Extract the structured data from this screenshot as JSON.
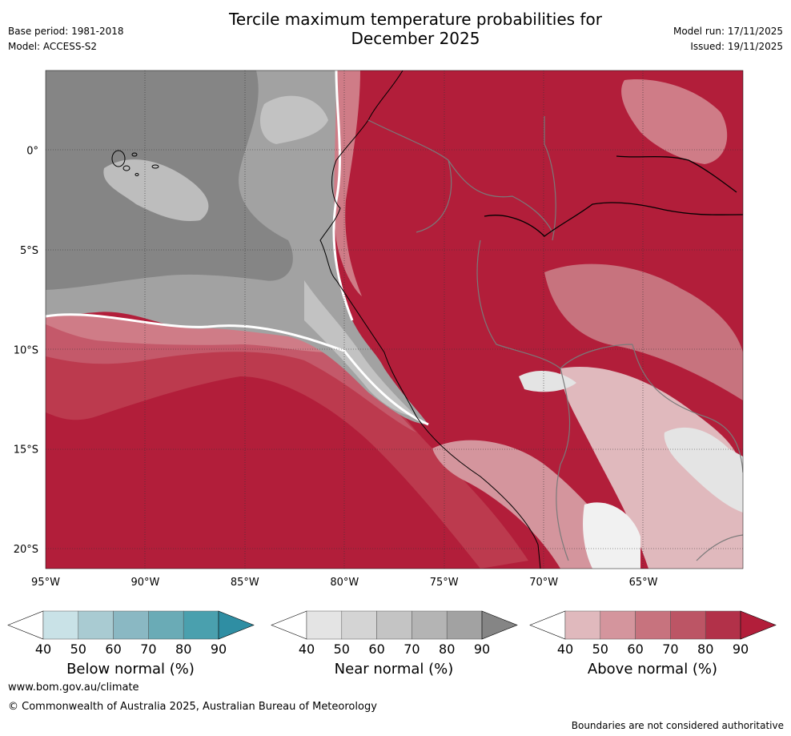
{
  "header": {
    "title_line1": "Tercile maximum temperature probabilities for",
    "title_line2": "December 2025",
    "base_period": "Base period: 1981-2018",
    "model": "Model: ACCESS-S2",
    "model_run": "Model run: 17/11/2025",
    "issued": "Issued: 19/11/2025"
  },
  "chart_data": {
    "type": "heatmap",
    "title": "Tercile maximum temperature probabilities for December 2025",
    "x_axis": {
      "range": [
        -95,
        -60
      ],
      "ticks": [
        -95,
        -90,
        -85,
        -80,
        -75,
        -70,
        -65
      ],
      "tick_labels": [
        "95°W",
        "90°W",
        "85°W",
        "80°W",
        "75°W",
        "70°W",
        "65°W"
      ]
    },
    "y_axis": {
      "range": [
        -21,
        4
      ],
      "ticks": [
        0,
        -5,
        -10,
        -15,
        -20
      ],
      "tick_labels": [
        "0°",
        "5°S",
        "10°S",
        "15°S",
        "20°S"
      ]
    },
    "grid": true,
    "categories": [
      {
        "name": "Below normal (%)",
        "levels": [
          40,
          50,
          60,
          70,
          80,
          90
        ],
        "colors": [
          "#ffffff",
          "#c9e2e7",
          "#a9cbd2",
          "#8ab8c3",
          "#6aabb6",
          "#4aa0ae",
          "#2f8ea3"
        ]
      },
      {
        "name": "Near normal (%)",
        "levels": [
          40,
          50,
          60,
          70,
          80,
          90
        ],
        "colors": [
          "#ffffff",
          "#e4e4e4",
          "#d4d4d4",
          "#c4c4c4",
          "#b4b4b4",
          "#a2a2a2",
          "#858585"
        ]
      },
      {
        "name": "Above normal (%)",
        "levels": [
          40,
          50,
          60,
          70,
          80,
          90
        ],
        "colors": [
          "#ffffff",
          "#e0b9bd",
          "#d4959d",
          "#c7737e",
          "#bc5565",
          "#b23149",
          "#b21e3a"
        ]
      }
    ],
    "regions": [
      {
        "description": "Pacific Ocean north of ~8°S",
        "dominant": "Near normal",
        "probability": "60-90"
      },
      {
        "description": "Pacific Ocean south of ~9°S",
        "dominant": "Above normal",
        "probability": "60-90+"
      },
      {
        "description": "Coastal Ecuador and northern Peru",
        "dominant": "Near normal",
        "probability": "50-80"
      },
      {
        "description": "Amazon basin and interior",
        "dominant": "Above normal",
        "probability": "70-90"
      },
      {
        "description": "Southern Peru and Bolivian Altiplano",
        "dominant": "Above normal",
        "probability": "40-70"
      }
    ]
  },
  "footer": {
    "website": "www.bom.gov.au/climate",
    "copyright": "© Commonwealth of Australia 2025, Australian Bureau of Meteorology",
    "disclaimer": "Boundaries are not considered authoritative"
  }
}
